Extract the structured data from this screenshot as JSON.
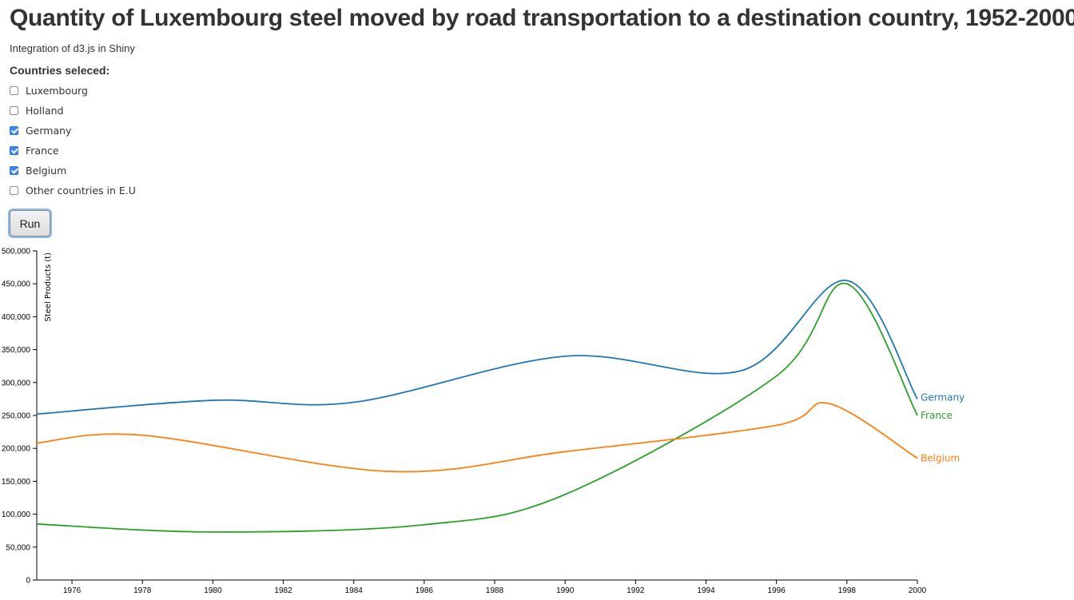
{
  "header": {
    "title": "Quantity of Luxembourg steel moved by road transportation to a destination country, 1952-2000",
    "subtitle": "Integration of d3.js in Shiny"
  },
  "controls": {
    "label": "Countries seleced:",
    "options": [
      {
        "label": "Luxembourg",
        "checked": false
      },
      {
        "label": "Holland",
        "checked": false
      },
      {
        "label": "Germany",
        "checked": true
      },
      {
        "label": "France",
        "checked": true
      },
      {
        "label": "Belgium",
        "checked": true
      },
      {
        "label": "Other countries in E.U",
        "checked": false
      }
    ],
    "run_label": "Run"
  },
  "colors": {
    "Germany": "#1f77b4",
    "France": "#2ca02c",
    "Belgium": "#ff7f0e",
    "checkbox_accent": "#3b86f0"
  },
  "chart_data": {
    "type": "line",
    "title": "",
    "xlabel": "",
    "ylabel": "Steel Products (t)",
    "xlim": [
      1975,
      2000
    ],
    "ylim": [
      0,
      500000
    ],
    "x_ticks": [
      1976,
      1978,
      1980,
      1982,
      1984,
      1986,
      1988,
      1990,
      1992,
      1994,
      1996,
      1998,
      2000
    ],
    "y_ticks": [
      0,
      50000,
      100000,
      150000,
      200000,
      250000,
      300000,
      350000,
      400000,
      450000,
      500000
    ],
    "grid": false,
    "legend": "inline labels at line ends",
    "series": [
      {
        "name": "Germany",
        "x": [
          1975,
          1980,
          1984,
          1990,
          1995,
          1998,
          2000
        ],
        "values": [
          252000,
          273000,
          270000,
          340000,
          318000,
          455000,
          275000
        ]
      },
      {
        "name": "France",
        "x": [
          1975,
          1980,
          1986,
          1990,
          1996,
          1998,
          2000
        ],
        "values": [
          85000,
          73000,
          84000,
          130000,
          310000,
          450000,
          250000
        ]
      },
      {
        "name": "Belgium",
        "x": [
          1975,
          1978,
          1985,
          1990,
          1996,
          1997.5,
          2000
        ],
        "values": [
          208000,
          220000,
          165000,
          195000,
          235000,
          268000,
          185000
        ]
      }
    ]
  }
}
